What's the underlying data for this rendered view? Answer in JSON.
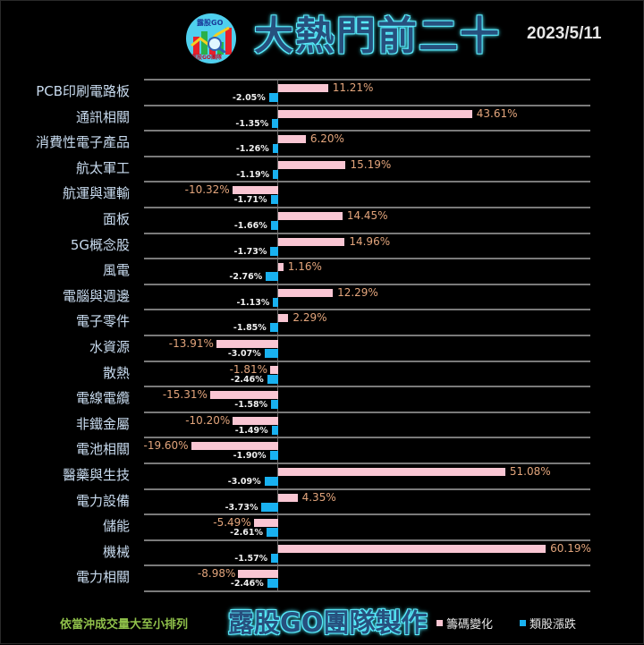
{
  "header": {
    "logo_text": "露股GO",
    "logo_sub": "露股GO團隊",
    "title": "大熱門前二十",
    "date": "2023/5/11"
  },
  "footer": {
    "note": "依當沖成交量大至小排列",
    "brand": "露股GO團隊製作",
    "legend": [
      {
        "label": "籌碼變化",
        "color": "#f9c6d3"
      },
      {
        "label": "類股漲跌",
        "color": "#19b1f0"
      }
    ]
  },
  "colors": {
    "background": "#000000",
    "pink_bar": "#f9c6d3",
    "blue_bar": "#19b1f0",
    "value_label": "#e3a57c",
    "category_label": "#c9dcf0",
    "note_green": "#8fc04a",
    "title_blue": "#27507e",
    "title_glow": "#5ff0ff"
  },
  "chart_data": {
    "type": "bar",
    "orientation": "horizontal",
    "title": "大熱門前二十",
    "subtitle": "2023/5/11",
    "xlabel": "",
    "ylabel": "",
    "grid": true,
    "legend_position": "bottom-right",
    "categories": [
      "PCB印刷電路板",
      "通訊相關",
      "消費性電子產品",
      "航太軍工",
      "航運與運輸",
      "面板",
      "5G概念股",
      "風電",
      "電腦與週邊",
      "電子零件",
      "水資源",
      "散熱",
      "電線電纜",
      "非鐵金屬",
      "電池相關",
      "醫藥與生技",
      "電力設備",
      "儲能",
      "機械",
      "電力相關"
    ],
    "series": [
      {
        "name": "籌碼變化",
        "color": "#f9c6d3",
        "values": [
          11.21,
          43.61,
          6.2,
          15.19,
          -10.32,
          14.45,
          14.96,
          1.16,
          12.29,
          2.29,
          -13.91,
          -1.81,
          -15.31,
          -10.2,
          -19.6,
          51.08,
          4.35,
          -5.49,
          60.19,
          -8.98
        ],
        "labels": [
          "11.21%",
          "43.61%",
          "6.20%",
          "15.19%",
          "-10.32%",
          "14.45%",
          "14.96%",
          "1.16%",
          "12.29%",
          "2.29%",
          "-13.91%",
          "-1.81%",
          "-15.31%",
          "-10.20%",
          "-19.60%",
          "51.08%",
          "4.35%",
          "-5.49%",
          "60.19%",
          "-8.98%"
        ]
      },
      {
        "name": "類股漲跌",
        "color": "#19b1f0",
        "values": [
          -2.05,
          -1.35,
          -1.26,
          -1.19,
          -1.71,
          -1.66,
          -1.73,
          -2.76,
          -1.13,
          -1.85,
          -3.07,
          -2.46,
          -1.58,
          -1.49,
          -1.9,
          -3.09,
          -3.73,
          -2.61,
          -1.57,
          -2.46
        ],
        "labels": [
          "-2.05%",
          "-1.35%",
          "-1.26%",
          "-1.19%",
          "-1.71%",
          "-1.66%",
          "-1.73%",
          "-2.76%",
          "-1.13%",
          "-1.85%",
          "-3.07%",
          "-2.46%",
          "-1.58%",
          "-1.49%",
          "-1.90%",
          "-3.09%",
          "-3.73%",
          "-2.61%",
          "-1.57%",
          "-2.46%"
        ]
      }
    ]
  }
}
